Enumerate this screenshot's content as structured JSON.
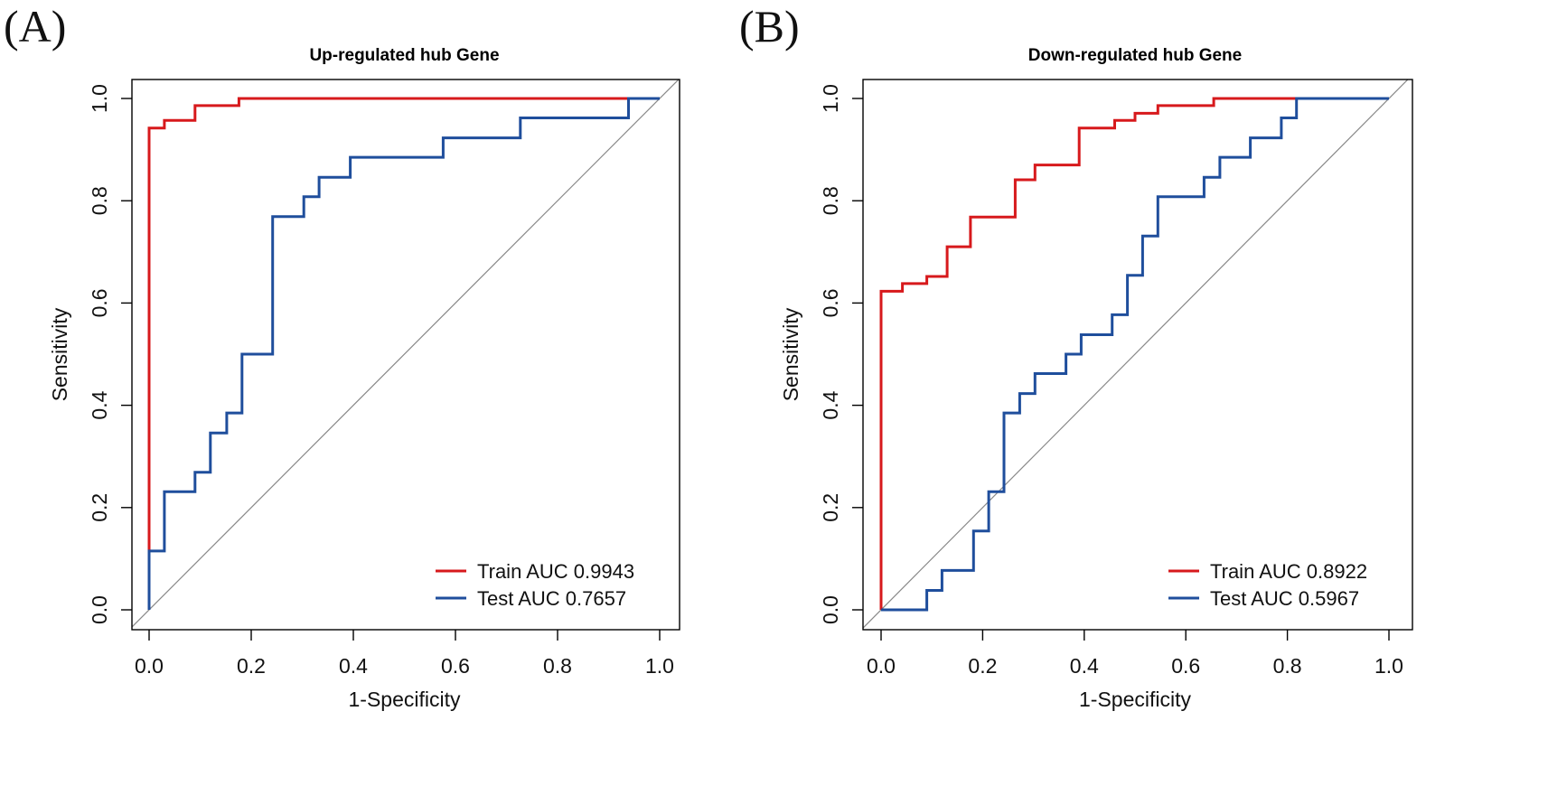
{
  "panels": [
    {
      "label": "(A)"
    },
    {
      "label": "(B)"
    }
  ],
  "colors": {
    "train": "#d7191c",
    "test": "#1f4e9c",
    "diagonal": "#888888",
    "axis": "#000000"
  },
  "chart_data": [
    {
      "type": "line",
      "title": "Up-regulated hub Gene",
      "xlabel": "1-Specificity",
      "ylabel": "Sensitivity",
      "xlim": [
        0,
        1
      ],
      "ylim": [
        0,
        1
      ],
      "xticks": [
        "0.0",
        "0.2",
        "0.4",
        "0.6",
        "0.8",
        "1.0"
      ],
      "yticks": [
        "0.0",
        "0.2",
        "0.4",
        "0.6",
        "0.8",
        "1.0"
      ],
      "legend_position": "bottom-right",
      "series": [
        {
          "name": "Train AUC 0.9943",
          "color_key": "train",
          "points": [
            [
              0,
              0
            ],
            [
              0,
              0.942
            ],
            [
              0.03,
              0.942
            ],
            [
              0.03,
              0.957
            ],
            [
              0.09,
              0.957
            ],
            [
              0.09,
              0.986
            ],
            [
              0.176,
              0.986
            ],
            [
              0.176,
              1
            ],
            [
              1,
              1
            ]
          ]
        },
        {
          "name": "Test AUC 0.7657",
          "color_key": "test",
          "points": [
            [
              0,
              0
            ],
            [
              0,
              0.115
            ],
            [
              0.03,
              0.115
            ],
            [
              0.03,
              0.231
            ],
            [
              0.09,
              0.231
            ],
            [
              0.09,
              0.269
            ],
            [
              0.12,
              0.269
            ],
            [
              0.12,
              0.346
            ],
            [
              0.152,
              0.346
            ],
            [
              0.152,
              0.385
            ],
            [
              0.182,
              0.385
            ],
            [
              0.182,
              0.5
            ],
            [
              0.242,
              0.5
            ],
            [
              0.242,
              0.769
            ],
            [
              0.303,
              0.769
            ],
            [
              0.303,
              0.808
            ],
            [
              0.333,
              0.808
            ],
            [
              0.333,
              0.846
            ],
            [
              0.394,
              0.846
            ],
            [
              0.394,
              0.885
            ],
            [
              0.576,
              0.885
            ],
            [
              0.576,
              0.923
            ],
            [
              0.727,
              0.923
            ],
            [
              0.727,
              0.962
            ],
            [
              0.939,
              0.962
            ],
            [
              0.939,
              1
            ],
            [
              1,
              1
            ]
          ]
        }
      ]
    },
    {
      "type": "line",
      "title": "Down-regulated hub Gene",
      "xlabel": "1-Specificity",
      "ylabel": "Sensitivity",
      "xlim": [
        0,
        1
      ],
      "ylim": [
        0,
        1
      ],
      "xticks": [
        "0.0",
        "0.2",
        "0.4",
        "0.6",
        "0.8",
        "1.0"
      ],
      "yticks": [
        "0.0",
        "0.2",
        "0.4",
        "0.6",
        "0.8",
        "1.0"
      ],
      "legend_position": "bottom-right",
      "series": [
        {
          "name": "Train AUC 0.8922",
          "color_key": "train",
          "points": [
            [
              0,
              0
            ],
            [
              0,
              0.623
            ],
            [
              0.042,
              0.623
            ],
            [
              0.042,
              0.638
            ],
            [
              0.09,
              0.638
            ],
            [
              0.09,
              0.652
            ],
            [
              0.13,
              0.652
            ],
            [
              0.13,
              0.71
            ],
            [
              0.176,
              0.71
            ],
            [
              0.176,
              0.768
            ],
            [
              0.264,
              0.768
            ],
            [
              0.264,
              0.841
            ],
            [
              0.303,
              0.841
            ],
            [
              0.303,
              0.87
            ],
            [
              0.39,
              0.87
            ],
            [
              0.39,
              0.942
            ],
            [
              0.46,
              0.942
            ],
            [
              0.46,
              0.957
            ],
            [
              0.5,
              0.957
            ],
            [
              0.5,
              0.971
            ],
            [
              0.545,
              0.971
            ],
            [
              0.545,
              0.986
            ],
            [
              0.655,
              0.986
            ],
            [
              0.655,
              1
            ],
            [
              1,
              1
            ]
          ]
        },
        {
          "name": "Test AUC 0.5967",
          "color_key": "test",
          "points": [
            [
              0,
              0
            ],
            [
              0.09,
              0
            ],
            [
              0.09,
              0.038
            ],
            [
              0.12,
              0.038
            ],
            [
              0.12,
              0.077
            ],
            [
              0.182,
              0.077
            ],
            [
              0.182,
              0.154
            ],
            [
              0.212,
              0.154
            ],
            [
              0.212,
              0.231
            ],
            [
              0.242,
              0.231
            ],
            [
              0.242,
              0.385
            ],
            [
              0.273,
              0.385
            ],
            [
              0.273,
              0.423
            ],
            [
              0.303,
              0.423
            ],
            [
              0.303,
              0.462
            ],
            [
              0.364,
              0.462
            ],
            [
              0.364,
              0.5
            ],
            [
              0.394,
              0.5
            ],
            [
              0.394,
              0.538
            ],
            [
              0.455,
              0.538
            ],
            [
              0.455,
              0.577
            ],
            [
              0.485,
              0.577
            ],
            [
              0.485,
              0.654
            ],
            [
              0.515,
              0.654
            ],
            [
              0.515,
              0.731
            ],
            [
              0.545,
              0.731
            ],
            [
              0.545,
              0.808
            ],
            [
              0.636,
              0.808
            ],
            [
              0.636,
              0.846
            ],
            [
              0.667,
              0.846
            ],
            [
              0.667,
              0.885
            ],
            [
              0.727,
              0.885
            ],
            [
              0.727,
              0.923
            ],
            [
              0.788,
              0.923
            ],
            [
              0.788,
              0.962
            ],
            [
              0.818,
              0.962
            ],
            [
              0.818,
              1
            ],
            [
              1,
              1
            ]
          ]
        }
      ]
    }
  ]
}
